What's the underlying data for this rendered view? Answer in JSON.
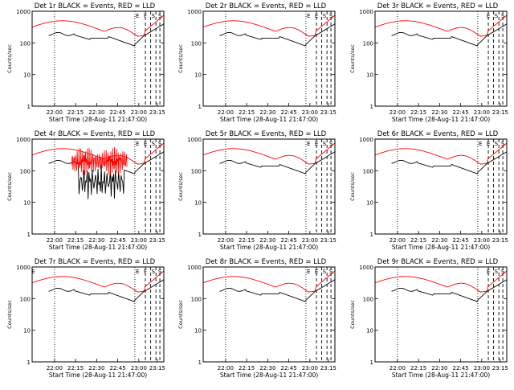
{
  "page": {
    "background": "#ffffff"
  },
  "colors": {
    "events": "#000000",
    "lld": "#ff0000",
    "axes": "#000000"
  },
  "chart_data": [
    {
      "type": "line",
      "title": "Det 1r BLACK = Events, RED = LLD",
      "xlabel": "Start Time (28-Aug-11 21:47:00)",
      "ylabel": "Counts/sec",
      "x_scale": "linear",
      "y_scale": "log",
      "ylim": [
        1,
        1000
      ],
      "xticks": [
        "22:00",
        "22:15",
        "22:30",
        "22:45",
        "23:00",
        "23:15"
      ],
      "yticks": [
        "1",
        "10",
        "100",
        "1000"
      ],
      "annotations": [
        "E",
        "F",
        "S",
        "S"
      ],
      "events_profile": "quiet"
    },
    {
      "type": "line",
      "title": "Det 2r BLACK = Events, RED = LLD",
      "xlabel": "Start Time (28-Aug-11 21:47:00)",
      "ylabel": "Counts/sec",
      "x_scale": "linear",
      "y_scale": "log",
      "ylim": [
        1,
        1000
      ],
      "xticks": [
        "22:00",
        "22:15",
        "22:30",
        "22:45",
        "23:00",
        "23:15"
      ],
      "yticks": [
        "1",
        "10",
        "100",
        "1000"
      ],
      "annotations": [
        "E",
        "E",
        "S",
        "S"
      ],
      "events_profile": "quiet"
    },
    {
      "type": "line",
      "title": "Det 3r BLACK = Events, RED = LLD",
      "xlabel": "Start Time (28-Aug-11 21:47:00)",
      "ylabel": "Counts/sec",
      "x_scale": "linear",
      "y_scale": "log",
      "ylim": [
        1,
        1000
      ],
      "xticks": [
        "22:00",
        "22:15",
        "22:30",
        "22:45",
        "23:00",
        "23:15"
      ],
      "yticks": [
        "1",
        "10",
        "100",
        "1000"
      ],
      "annotations": [
        "E",
        "S",
        "S"
      ],
      "events_profile": "quiet"
    },
    {
      "type": "line",
      "title": "Det 4r BLACK = Events, RED = LLD",
      "xlabel": "Start Time (28-Aug-11 21:47:00)",
      "ylabel": "Counts/sec",
      "x_scale": "linear",
      "y_scale": "log",
      "ylim": [
        1,
        1000
      ],
      "xticks": [
        "22:00",
        "22:15",
        "22:30",
        "22:45",
        "23:00",
        "23:15"
      ],
      "yticks": [
        "1",
        "10",
        "100",
        "1000"
      ],
      "annotations": [
        "E",
        "E",
        "S",
        "S"
      ],
      "events_profile": "noisy"
    },
    {
      "type": "line",
      "title": "Det 5r BLACK = Events, RED = LLD",
      "xlabel": "Start Time (28-Aug-11 21:47:00)",
      "ylabel": "Counts/sec",
      "x_scale": "linear",
      "y_scale": "log",
      "ylim": [
        1,
        1000
      ],
      "xticks": [
        "22:00",
        "22:15",
        "22:30",
        "22:45",
        "23:00",
        "23:15"
      ],
      "yticks": [
        "1",
        "10",
        "100",
        "1000"
      ],
      "annotations": [
        "E",
        "E",
        "S",
        "S"
      ],
      "events_profile": "quiet"
    },
    {
      "type": "line",
      "title": "Det 6r BLACK = Events, RED = LLD",
      "xlabel": "Start Time (28-Aug-11 21:47:00)",
      "ylabel": "Counts/sec",
      "x_scale": "linear",
      "y_scale": "log",
      "ylim": [
        1,
        1000
      ],
      "xticks": [
        "22:00",
        "22:15",
        "22:30",
        "22:45",
        "23:00",
        "23:15"
      ],
      "yticks": [
        "1",
        "10",
        "100",
        "1000"
      ],
      "annotations": [
        "E",
        "E",
        "S",
        "S"
      ],
      "events_profile": "quiet"
    },
    {
      "type": "line",
      "title": "Det 7r BLACK = Events, RED = LLD",
      "xlabel": "Start Time (28-Aug-11 21:47:00)",
      "ylabel": "Counts/sec",
      "x_scale": "linear",
      "y_scale": "log",
      "ylim": [
        1,
        1000
      ],
      "xticks": [
        "22:00",
        "22:15",
        "22:30",
        "22:45",
        "23:00",
        "23:15"
      ],
      "yticks": [
        "1",
        "10",
        "100",
        "1000"
      ],
      "annotations": [
        "E",
        "E",
        "F",
        "S",
        "S"
      ],
      "events_profile": "quiet"
    },
    {
      "type": "line",
      "title": "Det 8r BLACK = Events, RED = LLD",
      "xlabel": "Start Time (28-Aug-11 21:47:00)",
      "ylabel": "Counts/sec",
      "x_scale": "linear",
      "y_scale": "log",
      "ylim": [
        1,
        1000
      ],
      "xticks": [
        "22:00",
        "22:15",
        "22:30",
        "22:45",
        "23:00",
        "23:15"
      ],
      "yticks": [
        "1",
        "10",
        "100",
        "1000"
      ],
      "annotations": [
        "E",
        "E",
        "S",
        "S"
      ],
      "events_profile": "quiet"
    },
    {
      "type": "line",
      "title": "Det 9r BLACK = Events, RED = LLD",
      "xlabel": "Start Time (28-Aug-11 21:47:00)",
      "ylabel": "Counts/sec",
      "x_scale": "linear",
      "y_scale": "log",
      "ylim": [
        1,
        1000
      ],
      "xticks": [
        "22:00",
        "22:15",
        "22:30",
        "22:45",
        "23:00",
        "23:15"
      ],
      "yticks": [
        "1",
        "10",
        "100",
        "1000"
      ],
      "annotations": [
        "E",
        "S",
        "S"
      ],
      "events_profile": "quiet"
    }
  ]
}
